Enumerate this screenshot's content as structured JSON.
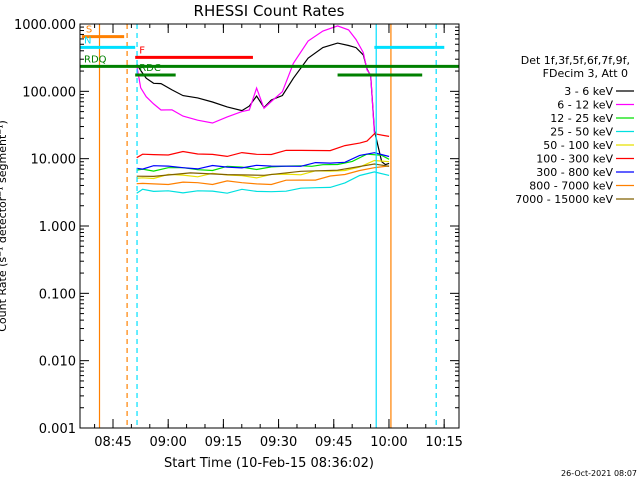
{
  "chart_data": {
    "type": "line",
    "title": "RHESSI Count Rates",
    "xlabel": "Start Time (10-Feb-15 08:36:02)",
    "ylabel": "Count Rate (s⁻¹ detector⁻¹ segment⁻¹)",
    "yscale": "log",
    "ylim": [
      0.001,
      1000
    ],
    "xlim_minutes": [
      0,
      103
    ],
    "x_tick_labels": [
      "08:45",
      "09:00",
      "09:15",
      "09:30",
      "09:45",
      "10:00",
      "10:15"
    ],
    "y_tick_labels": [
      "1000.000",
      "100.000",
      "10.000",
      "1.000",
      "0.100",
      "0.010",
      "0.001"
    ],
    "legend_header": [
      "Det 1f,3f,5f,6f,7f,9f,",
      "FDecim 3, Att 0"
    ],
    "legend_position": "right",
    "timestamp": "26-Oct-2021 08:07",
    "series": [
      {
        "name": "3 - 6 keV",
        "color": "#000000",
        "x": [
          15.4,
          16.5,
          18,
          20,
          22,
          25,
          28,
          32,
          36,
          40,
          44,
          46,
          48,
          50,
          52,
          55,
          58,
          62,
          66,
          70,
          73,
          75,
          77,
          78,
          79,
          80,
          82,
          83,
          84
        ],
        "y": [
          240,
          200,
          160,
          140,
          125,
          105,
          90,
          75,
          68,
          60,
          55,
          58,
          85,
          60,
          70,
          85,
          160,
          330,
          430,
          520,
          500,
          420,
          340,
          220,
          180,
          25,
          9,
          8.5,
          8
        ]
      },
      {
        "name": "6 - 12 keV",
        "color": "#ff00ff",
        "x": [
          15.4,
          16.5,
          18,
          20,
          22,
          25,
          28,
          32,
          36,
          40,
          44,
          46,
          48,
          50,
          52,
          55,
          58,
          62,
          66,
          70,
          73,
          75,
          77,
          78,
          79,
          80
        ],
        "y": [
          250,
          120,
          80,
          65,
          55,
          50,
          42,
          38,
          36,
          40,
          50,
          55,
          105,
          55,
          72,
          105,
          250,
          560,
          820,
          880,
          800,
          600,
          400,
          200,
          175,
          25
        ]
      },
      {
        "name": "12 - 25 keV",
        "color": "#00e000",
        "x": [
          15.4,
          17,
          20,
          24,
          28,
          32,
          36,
          40,
          44,
          48,
          52,
          56,
          60,
          63,
          66,
          70,
          74,
          78,
          82,
          84
        ],
        "y": [
          6.5,
          7,
          6.8,
          6.9,
          7.2,
          7,
          7.1,
          7.4,
          7.5,
          7.2,
          7.1,
          7.6,
          8,
          8.2,
          7.8,
          8.2,
          9.5,
          11,
          11,
          10
        ]
      },
      {
        "name": "25 - 50 keV",
        "color": "#00e0e0",
        "x": [
          15.4,
          17,
          20,
          24,
          28,
          32,
          36,
          40,
          44,
          48,
          52,
          56,
          60,
          64,
          68,
          72,
          76,
          80,
          84
        ],
        "y": [
          3.2,
          3.3,
          3.2,
          3.4,
          3.3,
          3.2,
          3.3,
          3.2,
          3.3,
          3.2,
          3.3,
          3.5,
          3.5,
          3.7,
          3.9,
          4.1,
          5.5,
          6.5,
          6
        ]
      },
      {
        "name": "50 - 100 keV",
        "color": "#e8e000",
        "x": [
          15.4,
          17,
          20,
          24,
          28,
          32,
          36,
          40,
          44,
          48,
          52,
          56,
          60,
          64,
          68,
          72,
          76,
          80,
          84
        ],
        "y": [
          5,
          5.3,
          5.4,
          5.6,
          5.7,
          5.6,
          5.7,
          5.6,
          5.7,
          5.5,
          5.6,
          5.9,
          6,
          6.2,
          6.4,
          6.8,
          8,
          9,
          9
        ]
      },
      {
        "name": "100 - 300 keV",
        "color": "#ff0000",
        "x": [
          15.4,
          17,
          20,
          24,
          28,
          32,
          36,
          40,
          44,
          48,
          52,
          56,
          60,
          64,
          68,
          72,
          76,
          78,
          80,
          84
        ],
        "y": [
          11,
          11.2,
          11.5,
          11.8,
          12,
          11.5,
          11.8,
          11.5,
          11.8,
          11.6,
          12,
          12.5,
          13,
          13.5,
          14,
          15,
          17,
          19,
          22,
          21
        ]
      },
      {
        "name": "300 - 800 keV",
        "color": "#0000ff",
        "x": [
          15.4,
          17,
          20,
          24,
          28,
          32,
          36,
          40,
          44,
          48,
          52,
          56,
          60,
          64,
          68,
          72,
          76,
          80,
          84
        ],
        "y": [
          7.2,
          7.3,
          7.4,
          7.6,
          7.5,
          7.5,
          7.6,
          7.5,
          7.6,
          7.5,
          7.6,
          7.9,
          8.2,
          8.4,
          8.6,
          9.2,
          10.5,
          12,
          11
        ]
      },
      {
        "name": "800 - 7000 keV",
        "color": "#ff8000",
        "x": [
          15.4,
          17,
          20,
          24,
          28,
          32,
          36,
          40,
          44,
          48,
          52,
          56,
          60,
          64,
          68,
          72,
          76,
          80,
          84
        ],
        "y": [
          4,
          4.2,
          4.3,
          4.4,
          4.3,
          4.4,
          4.3,
          4.4,
          4.3,
          4.3,
          4.4,
          4.6,
          4.8,
          5,
          5.2,
          5.7,
          6.8,
          7.8,
          7.5
        ]
      },
      {
        "name": "7000 - 15000 keV",
        "color": "#806000",
        "x": [
          15.4,
          20,
          30,
          40,
          50,
          60,
          70,
          80,
          84
        ],
        "y": [
          5.6,
          5.8,
          5.9,
          5.8,
          5.9,
          6.1,
          6.6,
          8.5,
          8.2
        ]
      }
    ],
    "flag_bars": [
      {
        "label": "S",
        "color": "#ff8000",
        "x": [
          0.5,
          12
        ],
        "y": 650
      },
      {
        "label": "N",
        "color": "#00e0ff",
        "x": [
          0,
          15
        ],
        "y": 450
      },
      {
        "label": "",
        "color": "#00e0ff",
        "x": [
          80,
          99
        ],
        "y": 450
      },
      {
        "label": "F",
        "color": "#ff0000",
        "x": [
          15,
          47
        ],
        "y": 320
      },
      {
        "label": "RDQ",
        "color": "#008000",
        "x": [
          0,
          103
        ],
        "y": 235
      },
      {
        "label": "RDC",
        "color": "#008000",
        "x": [
          15,
          26
        ],
        "y": 175
      },
      {
        "label": "",
        "color": "#008000",
        "x": [
          70,
          93
        ],
        "y": 175
      }
    ],
    "vertical_lines": [
      {
        "x": 5.3,
        "color": "#ff8000",
        "style": "solid"
      },
      {
        "x": 12.8,
        "color": "#ff8000",
        "style": "dashed"
      },
      {
        "x": 15.5,
        "color": "#00e0ff",
        "style": "dashed"
      },
      {
        "x": 80.5,
        "color": "#00e0ff",
        "style": "solid"
      },
      {
        "x": 84.5,
        "color": "#ff8000",
        "style": "solid"
      },
      {
        "x": 96.8,
        "color": "#00e0ff",
        "style": "dashed"
      }
    ]
  }
}
